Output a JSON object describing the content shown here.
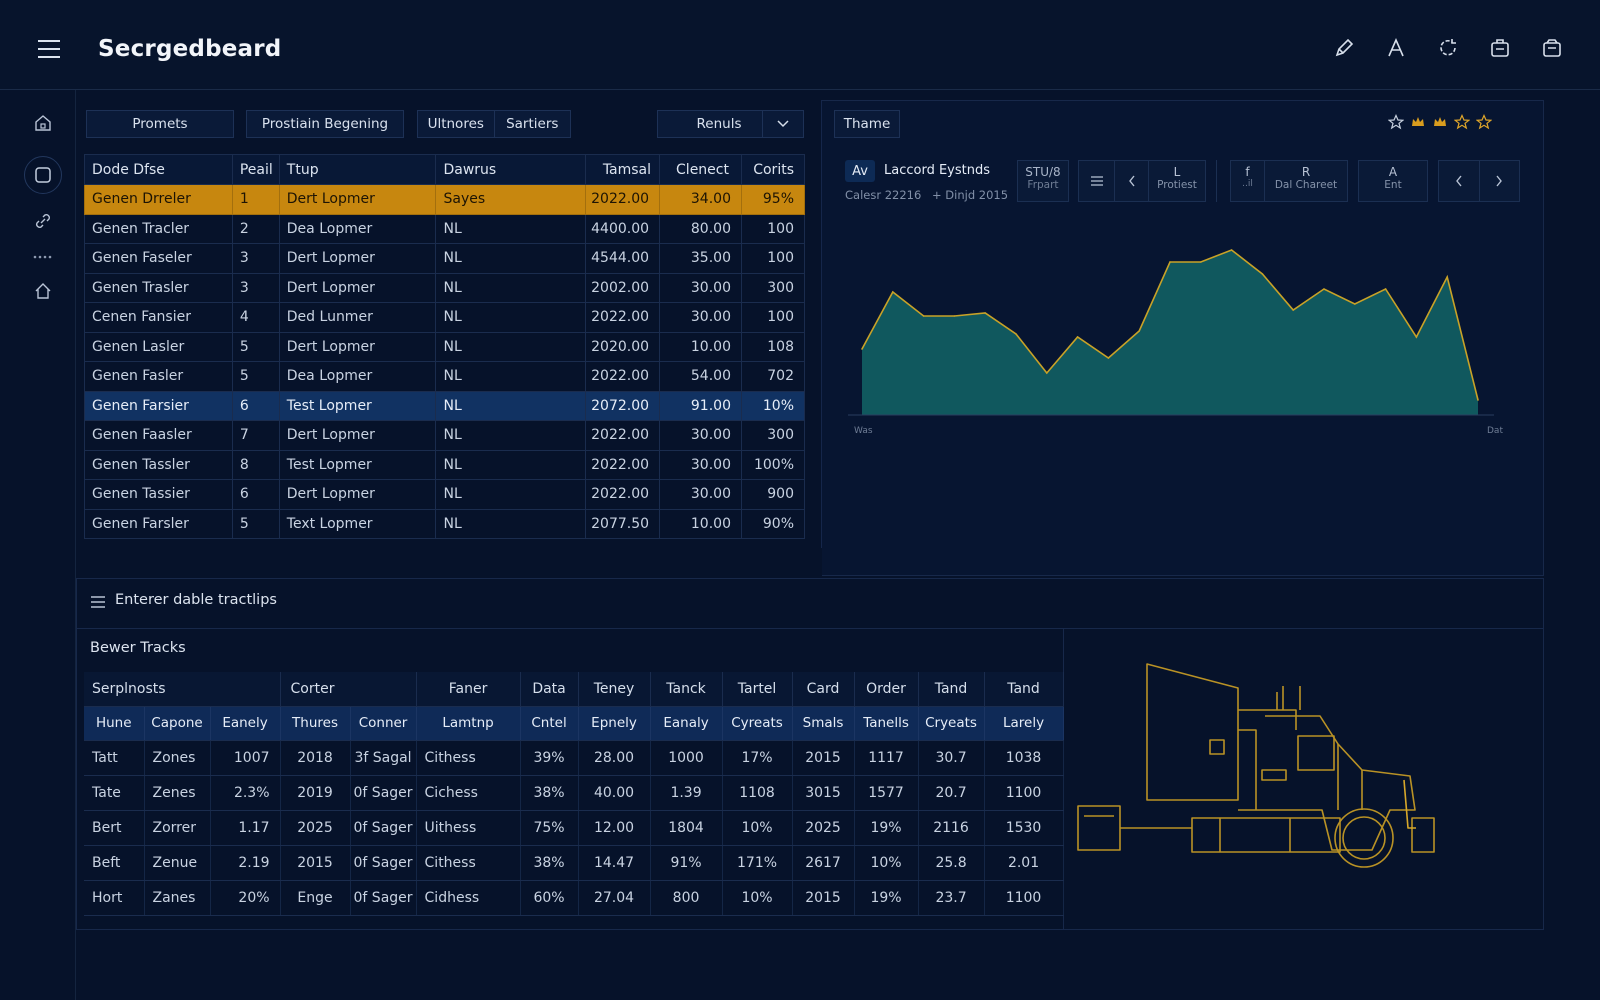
{
  "app": {
    "title": "Secrgedbeard"
  },
  "toolbar": {
    "btn1": "Promets",
    "btn2": "Prostiain Begening",
    "seg1": "Ultnores",
    "seg2": "Sartiers",
    "dropdown": "Renuls",
    "theme": "Thame"
  },
  "stars": [
    "star-outline-icon",
    "crown-icon",
    "crown-icon",
    "star-outline-icon",
    "star-outline-icon"
  ],
  "main_table": {
    "headers": [
      "Dode Dfse",
      "Peail",
      "Ttup",
      "Dawrus",
      "Tamsal",
      "Clenect",
      "Corits"
    ],
    "rows": [
      [
        "Genen Drreler",
        "1",
        "Dert Lopmer",
        "Sayes",
        "2022.00",
        "34.00",
        "95%"
      ],
      [
        "Genen Tracler",
        "2",
        "Dea Lopmer",
        "NL",
        "4400.00",
        "80.00",
        "100"
      ],
      [
        "Genen Faseler",
        "3",
        "Dert Lopmer",
        "NL",
        "4544.00",
        "35.00",
        "100"
      ],
      [
        "Genen Trasler",
        "3",
        "Dert Lopmer",
        "NL",
        "2002.00",
        "30.00",
        "300"
      ],
      [
        "Cenen Fansier",
        "4",
        "Ded Lunmer",
        "NL",
        "2022.00",
        "30.00",
        "100"
      ],
      [
        "Genen Lasler",
        "5",
        "Dert Lopmer",
        "NL",
        "2020.00",
        "10.00",
        "108"
      ],
      [
        "Genen Fasler",
        "5",
        "Dea Lopmer",
        "NL",
        "2022.00",
        "54.00",
        "702"
      ],
      [
        "Genen Farsier",
        "6",
        "Test Lopmer",
        "NL",
        "2072.00",
        "91.00",
        "10%"
      ],
      [
        "Genen Faasler",
        "7",
        "Dert Lopmer",
        "NL",
        "2022.00",
        "30.00",
        "300"
      ],
      [
        "Genen Tassler",
        "8",
        "Test Lopmer",
        "NL",
        "2022.00",
        "30.00",
        "100%"
      ],
      [
        "Genen Tassier",
        "6",
        "Dert Lopmer",
        "NL",
        "2022.00",
        "30.00",
        "900"
      ],
      [
        "Genen Farsler",
        "5",
        "Text Lopmer",
        "NL",
        "2077.50",
        "10.00",
        "90%"
      ]
    ],
    "highlight_gold_row": 0,
    "highlight_blue_row": 7
  },
  "chart_panel": {
    "tag": "Av",
    "title": "Laccord Eystnds",
    "meta1": "Calesr 22216",
    "meta2": "+ Dinjd 2015",
    "box1_top": "STU/8",
    "box1_bottom": "Frpart",
    "box2_top": "L",
    "box2_bottom": "Protiest",
    "box3_left_top": "f",
    "box3_left_bottom": "..il",
    "box3_top": "R",
    "box3_bottom": "Dal Chareet",
    "box4_top": "A",
    "box4_bottom": "Ent",
    "x_start": "Was",
    "x_end": "Dat"
  },
  "chart_data": {
    "type": "area",
    "x": [
      0,
      1,
      2,
      3,
      4,
      5,
      6,
      7,
      8,
      9,
      10,
      11,
      12,
      13,
      14,
      15,
      16,
      17,
      18,
      19,
      20
    ],
    "values": [
      22,
      41,
      33,
      33,
      34,
      27,
      14,
      26,
      19,
      28,
      51,
      51,
      55,
      47,
      35,
      42,
      37,
      42,
      26,
      46,
      5
    ],
    "ylim": [
      0,
      60
    ],
    "xlabel": "",
    "ylabel": "",
    "colors": {
      "fill": "#10585e",
      "line": "#c9a227"
    }
  },
  "section2": {
    "title": "Enterer dable tractlips",
    "subtitle": "Bewer Tracks"
  },
  "tracks_table": {
    "groups": [
      "Serplnosts",
      "Corter",
      "Faner",
      "Data",
      "Teney",
      "Tanck",
      "Tartel",
      "Card",
      "Order",
      "Tand",
      "Tand"
    ],
    "headers": [
      "Hune",
      "Capone",
      "Eanely",
      "Thures",
      "Conner",
      "Lamtnp",
      "Cntel",
      "Epnely",
      "Eanaly",
      "Cyreats",
      "Smals",
      "Tanells",
      "Cryeats",
      "Larely"
    ],
    "rows": [
      [
        "Tatt",
        "Zones",
        "1007",
        "2018",
        "3f Sagal",
        "Cithess",
        "39%",
        "28.00",
        "1000",
        "17%",
        "2015",
        "1117",
        "30.7",
        "1038"
      ],
      [
        "Tate",
        "Zenes",
        "2.3%",
        "2019",
        "0f Sager",
        "Cichess",
        "38%",
        "40.00",
        "1.39",
        "1108",
        "3015",
        "1577",
        "20.7",
        "1100"
      ],
      [
        "Bert",
        "Zorrer",
        "1.17",
        "2025",
        "0f Sager",
        "Uithess",
        "75%",
        "12.00",
        "1804",
        "10%",
        "2025",
        "19%",
        "2116",
        "1530"
      ],
      [
        "Beft",
        "Zenue",
        "2.19",
        "2015",
        "0f Sager",
        "Cithess",
        "38%",
        "14.47",
        "91%",
        "171%",
        "2617",
        "10%",
        "25.8",
        "2.01"
      ],
      [
        "Hort",
        "Zanes",
        "20%",
        "Enge",
        "0f Sager",
        "Cidhess",
        "60%",
        "27.04",
        "800",
        "10%",
        "2015",
        "19%",
        "23.7",
        "1100"
      ]
    ]
  }
}
